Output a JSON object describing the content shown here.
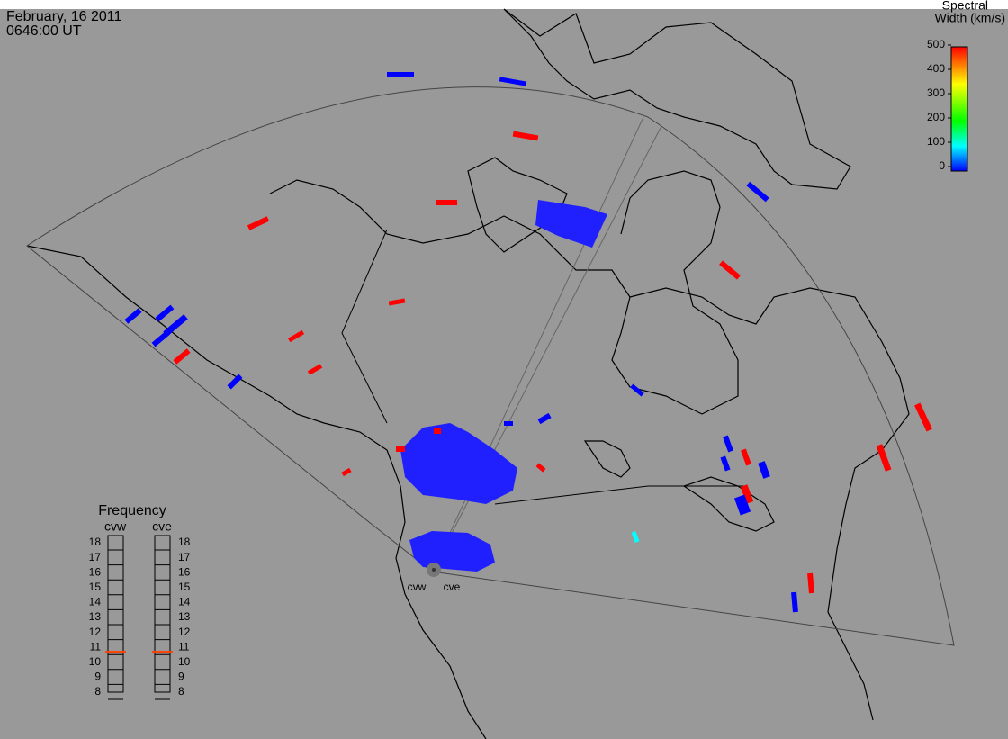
{
  "header": {
    "date": "February, 16 2011",
    "time": "0646:00 UT"
  },
  "colorbar": {
    "title_line1": "Spectral",
    "title_line2": "Width (km/s)",
    "ticks": [
      0,
      100,
      200,
      300,
      400,
      500
    ]
  },
  "frequency": {
    "title": "Frequency",
    "ticks": [
      8,
      9,
      10,
      11,
      12,
      13,
      14,
      15,
      16,
      17,
      18
    ],
    "radars": [
      {
        "name": "cvw",
        "value": 10.7
      },
      {
        "name": "cve",
        "value": 10.7
      }
    ]
  },
  "sites": [
    {
      "label": "cvw"
    },
    {
      "label": "cve"
    }
  ],
  "echoes": [
    0,
    0,
    500,
    500,
    500,
    0,
    500,
    500,
    0,
    0,
    0,
    0,
    500,
    500,
    500,
    0,
    0,
    0,
    0,
    500,
    500,
    0,
    500,
    0,
    0,
    500,
    0,
    100,
    500,
    500,
    500,
    0,
    500,
    500
  ]
}
